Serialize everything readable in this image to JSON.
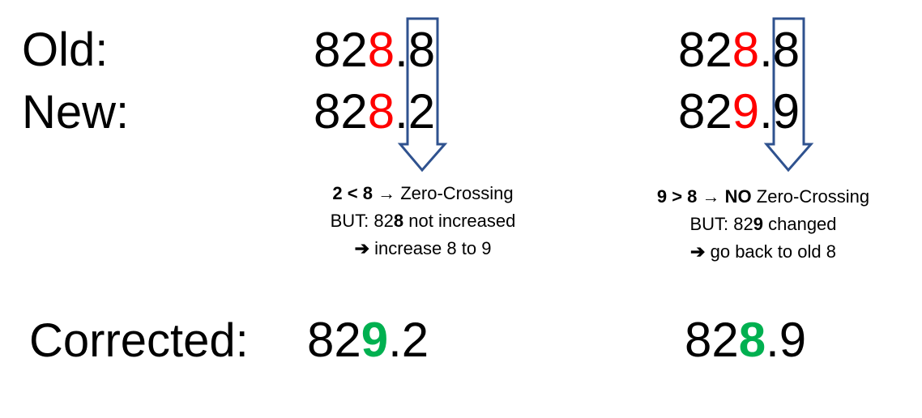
{
  "labels": {
    "old": "Old:",
    "new": "New:",
    "corrected": "Corrected:"
  },
  "colors": {
    "changed_digit": "#ff0000",
    "corrected_digit": "#00b050",
    "arrow": "#2f528f"
  },
  "left": {
    "old": {
      "pre": "82",
      "digit": "8",
      "post": ".8"
    },
    "new": {
      "pre": "82",
      "digit": "8",
      "post": ".2"
    },
    "note": {
      "line1_bold": "2 < 8",
      "line1_arrow": "→",
      "line1_rest": "Zero-Crossing",
      "line2_pre": "BUT: 82",
      "line2_bold": "8",
      "line2_rest": "not increased",
      "line3_arrow": "➔",
      "line3_rest": "increase 8 to 9"
    },
    "corrected": {
      "pre": "82",
      "digit": "9",
      "post": ".2"
    }
  },
  "right": {
    "old": {
      "pre": "82",
      "digit": "8",
      "post": ".8"
    },
    "new": {
      "pre": "82",
      "digit": "9",
      "post": ".9"
    },
    "note": {
      "line1_bold": "9 > 8",
      "line1_arrow": "→",
      "line1_bold2": "NO",
      "line1_rest": "Zero-Crossing",
      "line2_pre": "BUT: 82",
      "line2_bold": "9",
      "line2_rest": "changed",
      "line3_arrow": "➔",
      "line3_rest": "go back to old 8"
    },
    "corrected": {
      "pre": "82",
      "digit": "8",
      "post": ".9"
    }
  }
}
